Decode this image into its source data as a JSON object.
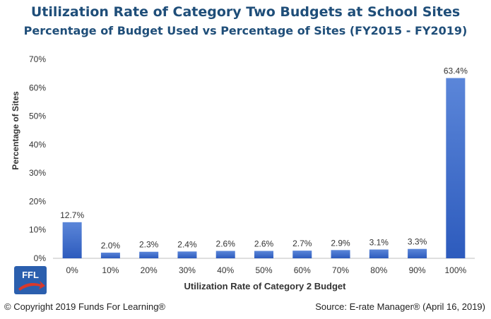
{
  "chart_data": {
    "type": "bar",
    "title": "Utilization Rate of Category Two Budgets at School Sites",
    "subtitle": "Percentage of Budget Used vs Percentage of Sites (FY2015 - FY2019)",
    "xlabel": "Utilization Rate of Category 2 Budget",
    "ylabel": "Percentage of Sites",
    "categories": [
      "0%",
      "10%",
      "20%",
      "30%",
      "40%",
      "50%",
      "60%",
      "70%",
      "80%",
      "90%",
      "100%"
    ],
    "values": [
      12.7,
      2.0,
      2.3,
      2.4,
      2.6,
      2.6,
      2.7,
      2.9,
      3.1,
      3.3,
      63.4
    ],
    "data_labels": [
      "12.7%",
      "2.0%",
      "2.3%",
      "2.4%",
      "2.6%",
      "2.6%",
      "2.7%",
      "2.9%",
      "3.1%",
      "3.3%",
      "63.4%"
    ],
    "yticks": [
      "0%",
      "10%",
      "20%",
      "30%",
      "40%",
      "50%",
      "60%",
      "70%"
    ],
    "ylim": [
      0,
      70
    ],
    "grid": false,
    "bar_color": "#3a68c7"
  },
  "logo": {
    "text": "FFL"
  },
  "footer": {
    "copyright": "© Copyright 2019 Funds For Learning®",
    "source": "Source: E-rate Manager® (April 16, 2019)"
  }
}
